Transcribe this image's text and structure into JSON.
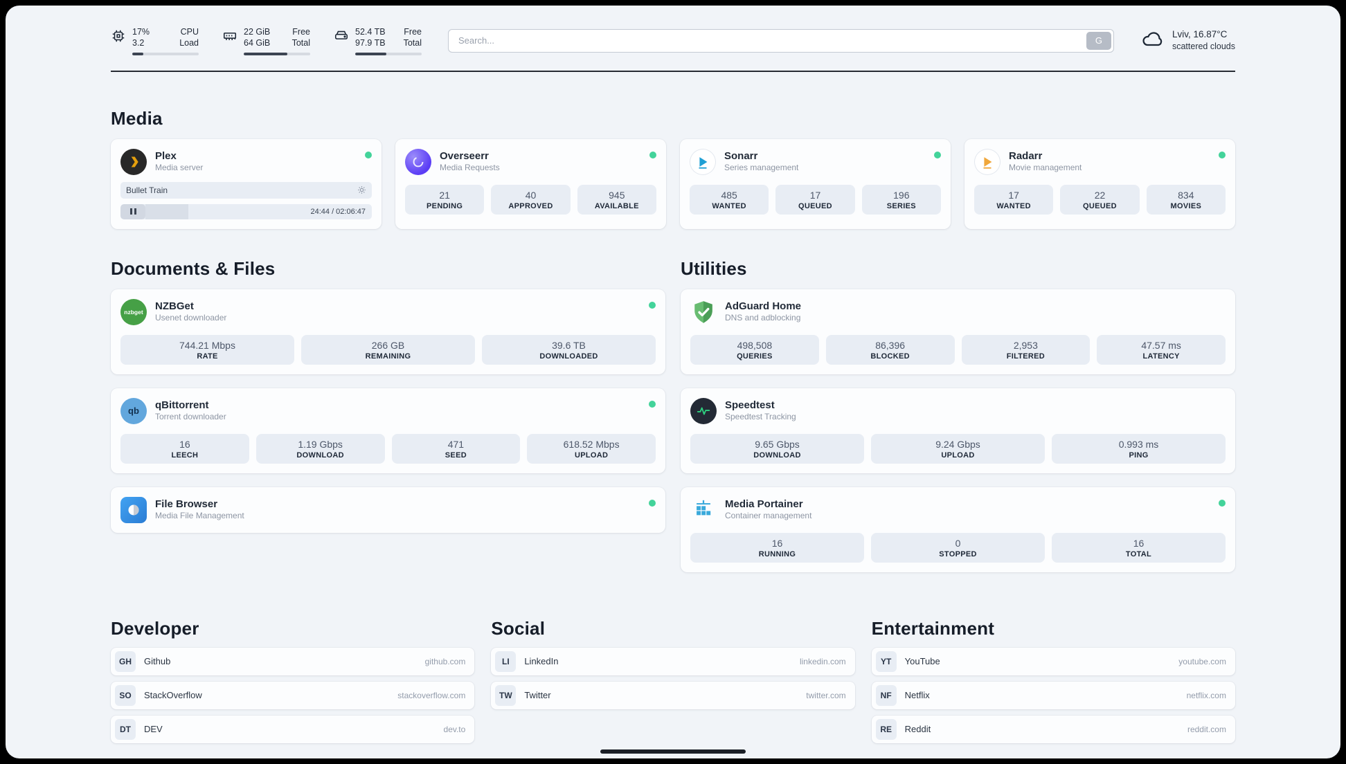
{
  "header": {
    "cpu": {
      "value": "17%",
      "sub": "3.2",
      "label1": "CPU",
      "label2": "Load",
      "progress": 17
    },
    "ram": {
      "value": "22 GiB",
      "sub": "64 GiB",
      "label1": "Free",
      "label2": "Total",
      "progress": 66
    },
    "disk": {
      "value": "52.4 TB",
      "sub": "97.9 TB",
      "label1": "Free",
      "label2": "Total",
      "progress": 47
    },
    "search": {
      "placeholder": "Search...",
      "button_label": "G"
    },
    "weather": {
      "location": "Lviv, 16.87°C",
      "condition": "scattered clouds"
    }
  },
  "media": {
    "heading": "Media",
    "plex": {
      "name": "Plex",
      "subtitle": "Media server",
      "now_playing": "Bullet Train",
      "time": "24:44 / 02:06:47",
      "progress": 19
    },
    "overseerr": {
      "name": "Overseerr",
      "subtitle": "Media Requests",
      "stats": [
        {
          "value": "21",
          "label": "PENDING"
        },
        {
          "value": "40",
          "label": "APPROVED"
        },
        {
          "value": "945",
          "label": "AVAILABLE"
        }
      ]
    },
    "sonarr": {
      "name": "Sonarr",
      "subtitle": "Series management",
      "stats": [
        {
          "value": "485",
          "label": "WANTED"
        },
        {
          "value": "17",
          "label": "QUEUED"
        },
        {
          "value": "196",
          "label": "SERIES"
        }
      ]
    },
    "radarr": {
      "name": "Radarr",
      "subtitle": "Movie management",
      "stats": [
        {
          "value": "17",
          "label": "WANTED"
        },
        {
          "value": "22",
          "label": "QUEUED"
        },
        {
          "value": "834",
          "label": "MOVIES"
        }
      ]
    }
  },
  "documents": {
    "heading": "Documents & Files",
    "nzbget": {
      "name": "NZBGet",
      "subtitle": "Usenet downloader",
      "icon_text": "nzbget",
      "stats": [
        {
          "value": "744.21 Mbps",
          "label": "RATE"
        },
        {
          "value": "266 GB",
          "label": "REMAINING"
        },
        {
          "value": "39.6 TB",
          "label": "DOWNLOADED"
        }
      ]
    },
    "qbittorrent": {
      "name": "qBittorrent",
      "subtitle": "Torrent downloader",
      "icon_text": "qb",
      "stats": [
        {
          "value": "16",
          "label": "LEECH"
        },
        {
          "value": "1.19 Gbps",
          "label": "DOWNLOAD"
        },
        {
          "value": "471",
          "label": "SEED"
        },
        {
          "value": "618.52 Mbps",
          "label": "UPLOAD"
        }
      ]
    },
    "filebrowser": {
      "name": "File Browser",
      "subtitle": "Media File Management"
    }
  },
  "utilities": {
    "heading": "Utilities",
    "adguard": {
      "name": "AdGuard Home",
      "subtitle": "DNS and adblocking",
      "stats": [
        {
          "value": "498,508",
          "label": "QUERIES"
        },
        {
          "value": "86,396",
          "label": "BLOCKED"
        },
        {
          "value": "2,953",
          "label": "FILTERED"
        },
        {
          "value": "47.57 ms",
          "label": "LATENCY"
        }
      ]
    },
    "speedtest": {
      "name": "Speedtest",
      "subtitle": "Speedtest Tracking",
      "stats": [
        {
          "value": "9.65 Gbps",
          "label": "DOWNLOAD"
        },
        {
          "value": "9.24 Gbps",
          "label": "UPLOAD"
        },
        {
          "value": "0.993 ms",
          "label": "PING"
        }
      ]
    },
    "portainer": {
      "name": "Media Portainer",
      "subtitle": "Container management",
      "stats": [
        {
          "value": "16",
          "label": "RUNNING"
        },
        {
          "value": "0",
          "label": "STOPPED"
        },
        {
          "value": "16",
          "label": "TOTAL"
        }
      ]
    }
  },
  "bookmarks": [
    {
      "heading": "Developer",
      "items": [
        {
          "abbr": "GH",
          "name": "Github",
          "url": "github.com"
        },
        {
          "abbr": "SO",
          "name": "StackOverflow",
          "url": "stackoverflow.com"
        },
        {
          "abbr": "DT",
          "name": "DEV",
          "url": "dev.to"
        }
      ]
    },
    {
      "heading": "Social",
      "items": [
        {
          "abbr": "LI",
          "name": "LinkedIn",
          "url": "linkedin.com"
        },
        {
          "abbr": "TW",
          "name": "Twitter",
          "url": "twitter.com"
        }
      ]
    },
    {
      "heading": "Entertainment",
      "items": [
        {
          "abbr": "YT",
          "name": "YouTube",
          "url": "youtube.com"
        },
        {
          "abbr": "NF",
          "name": "Netflix",
          "url": "netflix.com"
        },
        {
          "abbr": "RE",
          "name": "Reddit",
          "url": "reddit.com"
        }
      ]
    }
  ]
}
